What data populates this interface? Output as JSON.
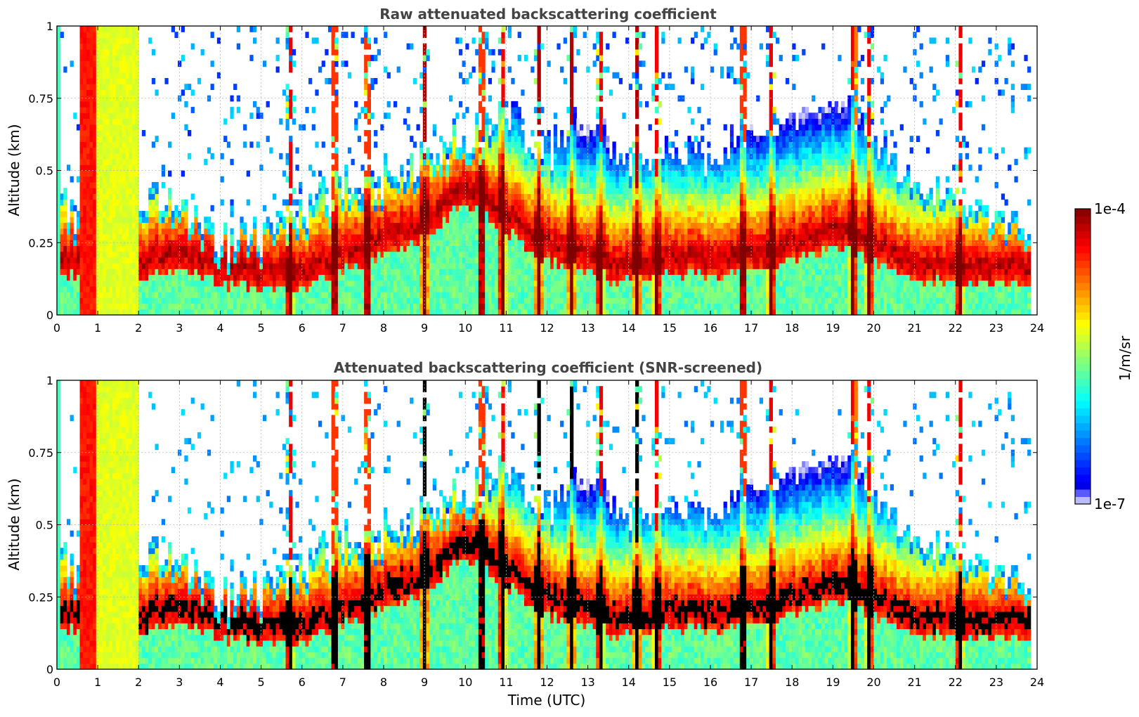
{
  "chart_data": [
    {
      "type": "heatmap",
      "title": "Raw attenuated backscattering coefficient",
      "xlabel": "",
      "ylabel": "Altitude (km)",
      "xlim": [
        0,
        24
      ],
      "ylim": [
        0,
        1
      ],
      "x_ticks": [
        "0",
        "1",
        "2",
        "3",
        "4",
        "5",
        "6",
        "7",
        "8",
        "9",
        "10",
        "11",
        "12",
        "13",
        "14",
        "15",
        "16",
        "17",
        "18",
        "19",
        "20",
        "21",
        "22",
        "23",
        "24"
      ],
      "y_ticks": [
        "0",
        "0.25",
        "0.5",
        "0.75",
        "1"
      ],
      "grid": true,
      "data_end_hour": 23.85,
      "boundary_layer_top_km": [
        [
          0,
          0.5
        ],
        [
          0.5,
          0.3
        ],
        [
          1,
          0.3
        ],
        [
          2,
          0.4
        ],
        [
          3,
          0.38
        ],
        [
          4,
          0.25
        ],
        [
          5,
          0.28
        ],
        [
          6,
          0.35
        ],
        [
          7,
          0.45
        ],
        [
          8,
          0.45
        ],
        [
          9,
          0.55
        ],
        [
          10,
          0.6
        ],
        [
          11,
          0.7
        ],
        [
          12,
          0.55
        ],
        [
          13,
          0.75
        ],
        [
          14,
          0.5
        ],
        [
          15,
          0.55
        ],
        [
          16,
          0.55
        ],
        [
          17,
          0.65
        ],
        [
          18,
          0.7
        ],
        [
          19,
          0.8
        ],
        [
          20,
          0.6
        ],
        [
          21,
          0.45
        ],
        [
          22,
          0.4
        ],
        [
          23,
          0.35
        ],
        [
          23.85,
          0.3
        ]
      ],
      "aerosol_layer_center_km": [
        [
          0,
          0.2
        ],
        [
          0.5,
          0.2
        ],
        [
          2,
          0.18
        ],
        [
          3,
          0.22
        ],
        [
          4,
          0.17
        ],
        [
          5,
          0.15
        ],
        [
          6,
          0.15
        ],
        [
          7,
          0.22
        ],
        [
          8,
          0.27
        ],
        [
          9,
          0.33
        ],
        [
          10,
          0.45
        ],
        [
          11,
          0.35
        ],
        [
          12,
          0.25
        ],
        [
          13,
          0.2
        ],
        [
          14,
          0.18
        ],
        [
          15,
          0.2
        ],
        [
          16,
          0.2
        ],
        [
          17,
          0.22
        ],
        [
          18,
          0.25
        ],
        [
          19,
          0.3
        ],
        [
          20,
          0.25
        ],
        [
          21,
          0.18
        ],
        [
          22,
          0.17
        ],
        [
          23,
          0.17
        ],
        [
          23.85,
          0.17
        ]
      ],
      "high_signal_columns_hour": [
        0.7,
        1.5,
        5.7,
        6.8,
        7.6,
        9.0,
        10.4,
        10.9,
        11.8,
        12.6,
        13.3,
        14.2,
        14.7,
        16.8,
        17.5,
        19.5,
        19.9,
        22.1
      ]
    },
    {
      "type": "heatmap",
      "title": "Attenuated backscattering coefficient (SNR-screened)",
      "xlabel": "Time (UTC)",
      "ylabel": "Altitude (km)",
      "xlim": [
        0,
        24
      ],
      "ylim": [
        0,
        1
      ],
      "x_ticks": [
        "0",
        "1",
        "2",
        "3",
        "4",
        "5",
        "6",
        "7",
        "8",
        "9",
        "10",
        "11",
        "12",
        "13",
        "14",
        "15",
        "16",
        "17",
        "18",
        "19",
        "20",
        "21",
        "22",
        "23",
        "24"
      ],
      "y_ticks": [
        "0",
        "0.25",
        "0.5",
        "0.75",
        "1"
      ],
      "grid": true,
      "saturated_color": "#000000",
      "data_end_hour": 23.85
    }
  ],
  "colorbar": {
    "label": "1/m/sr",
    "max_label": "1e-4",
    "min_label": "1e-7",
    "colormap": "jet",
    "scale": "log",
    "range": [
      1e-07,
      0.0001
    ],
    "colors": [
      "#ececfb",
      "#0000ff",
      "#00ffff",
      "#ffff00",
      "#ff0000",
      "#800000"
    ]
  }
}
